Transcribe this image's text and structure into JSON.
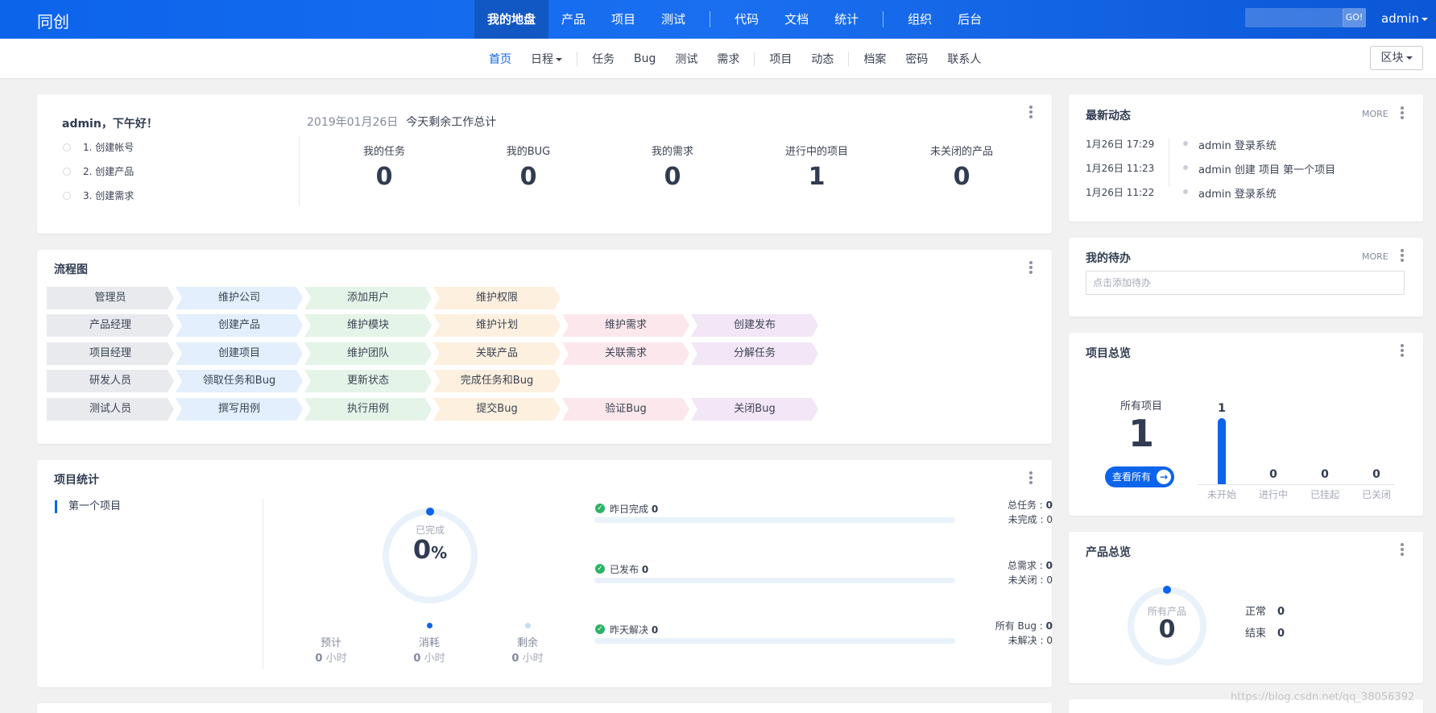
{
  "brand": "同创",
  "main_nav": [
    "我的地盘",
    "产品",
    "项目",
    "测试",
    "代码",
    "文档",
    "统计",
    "组织",
    "后台"
  ],
  "main_nav_active": "我的地盘",
  "search": {
    "button_label": "GO!"
  },
  "user": "admin",
  "sub_nav": [
    "首页",
    "日程",
    "任务",
    "Bug",
    "测试",
    "需求",
    "项目",
    "动态",
    "档案",
    "密码",
    "联系人"
  ],
  "sub_nav_active": "首页",
  "block_button": "区块",
  "welcome": {
    "greeting": "admin，下午好！",
    "steps": [
      "1. 创建帐号",
      "2. 创建产品",
      "3. 创建需求"
    ],
    "date": "2019年01月26日",
    "summary": "今天剩余工作总计",
    "stats": [
      {
        "label": "我的任务",
        "value": "0"
      },
      {
        "label": "我的BUG",
        "value": "0"
      },
      {
        "label": "我的需求",
        "value": "0"
      },
      {
        "label": "进行中的项目",
        "value": "1"
      },
      {
        "label": "未关闭的产品",
        "value": "0"
      }
    ]
  },
  "flowchart": {
    "title": "流程图",
    "rows": [
      [
        "管理员",
        "维护公司",
        "添加用户",
        "维护权限"
      ],
      [
        "产品经理",
        "创建产品",
        "维护模块",
        "维护计划",
        "维护需求",
        "创建发布"
      ],
      [
        "项目经理",
        "创建项目",
        "维护团队",
        "关联产品",
        "关联需求",
        "分解任务"
      ],
      [
        "研发人员",
        "领取任务和Bug",
        "更新状态",
        "完成任务和Bug"
      ],
      [
        "测试人员",
        "撰写用例",
        "执行用例",
        "提交Bug",
        "验证Bug",
        "关闭Bug"
      ]
    ]
  },
  "project_stats": {
    "title": "项目统计",
    "project": "第一个项目",
    "ring_label": "已完成",
    "ring_value": "0",
    "ring_unit": "%",
    "hours": [
      {
        "label": "预计",
        "value": "0",
        "unit": "小时"
      },
      {
        "label": "消耗",
        "value": "0",
        "unit": "小时"
      },
      {
        "label": "剩余",
        "value": "0",
        "unit": "小时"
      }
    ],
    "bars": [
      {
        "label": "昨日完成",
        "value": "0",
        "right1_label": "总任务",
        "right1_value": "0",
        "right2_label": "未完成",
        "right2_value": "0"
      },
      {
        "label": "已发布",
        "value": "0",
        "right1_label": "总需求",
        "right1_value": "0",
        "right2_label": "未关闭",
        "right2_value": "0"
      },
      {
        "label": "昨天解决",
        "value": "0",
        "right1_label": "所有 Bug",
        "right1_value": "0",
        "right2_label": "未解决",
        "right2_value": "0"
      }
    ]
  },
  "activity": {
    "title": "最新动态",
    "more": "MORE",
    "items": [
      {
        "time": "1月26日 17:29",
        "text": "admin 登录系统"
      },
      {
        "time": "1月26日 11:23",
        "text": "admin 创建 项目 第一个项目"
      },
      {
        "time": "1月26日 11:22",
        "text": "admin 登录系统"
      }
    ]
  },
  "todo": {
    "title": "我的待办",
    "more": "MORE",
    "placeholder": "点击添加待办"
  },
  "project_overview": {
    "title": "项目总览",
    "all_label": "所有项目",
    "all_value": "1",
    "view_all": "查看所有",
    "chart_data": {
      "type": "bar",
      "categories": [
        "未开始",
        "进行中",
        "已挂起",
        "已关闭"
      ],
      "values": [
        1,
        0,
        0,
        0
      ],
      "ylim": [
        0,
        1
      ]
    }
  },
  "product_overview": {
    "title": "产品总览",
    "ring_label": "所有产品",
    "ring_value": "0",
    "legend": [
      {
        "label": "正常",
        "value": "0"
      },
      {
        "label": "结束",
        "value": "0"
      }
    ]
  },
  "watermark": "https://blog.csdn.net/qq_38056392",
  "colors": {
    "accent": "#0c64eb",
    "success": "#2bb466"
  }
}
